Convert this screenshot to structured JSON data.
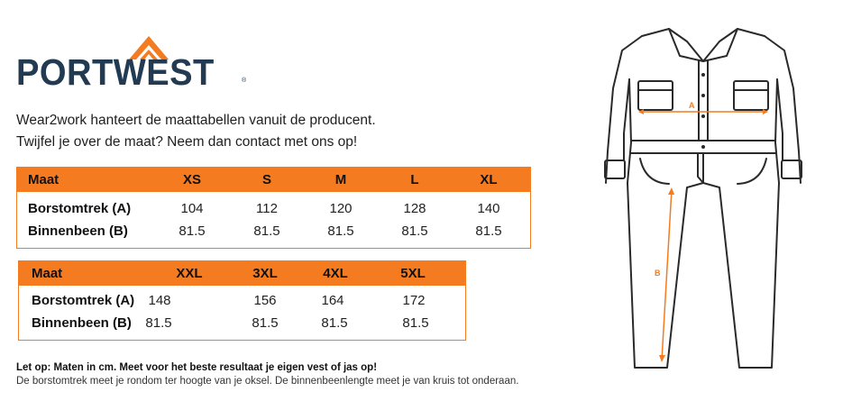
{
  "brand": {
    "name": "PORTWEST",
    "registered": "®",
    "accent": "#f47b20",
    "navy": "#233b52"
  },
  "intro": [
    "Wear2work hanteert de maattabellen vanuit de producent.",
    "Twijfel je over de maat? Neem dan contact met ons op!"
  ],
  "table1": {
    "header": [
      "Maat",
      "XS",
      "S",
      "M",
      "L",
      "XL"
    ],
    "rows": [
      [
        "Borstomtrek (A)",
        "104",
        "112",
        "120",
        "128",
        "140"
      ],
      [
        "Binnenbeen (B)",
        "81.5",
        "81.5",
        "81.5",
        "81.5",
        "81.5"
      ]
    ]
  },
  "table2": {
    "header": [
      "Maat",
      "XXL",
      "3XL",
      "4XL",
      "5XL"
    ],
    "rows": [
      [
        "Borstomtrek (A)",
        "148",
        "156",
        "164",
        "172"
      ],
      [
        "Binnenbeen (B)",
        "81.5",
        "81.5",
        "81.5",
        "81.5"
      ]
    ]
  },
  "note": {
    "bold": "Let op: Maten in cm. Meet voor het beste resultaat je eigen vest of jas op!",
    "normal": "De borstomtrek meet je rondom ter hoogte van je oksel. De binnenbeenlengte meet je van kruis tot onderaan."
  },
  "figure": {
    "icon": "coverall-icon",
    "label_a": "A",
    "label_b": "B"
  }
}
